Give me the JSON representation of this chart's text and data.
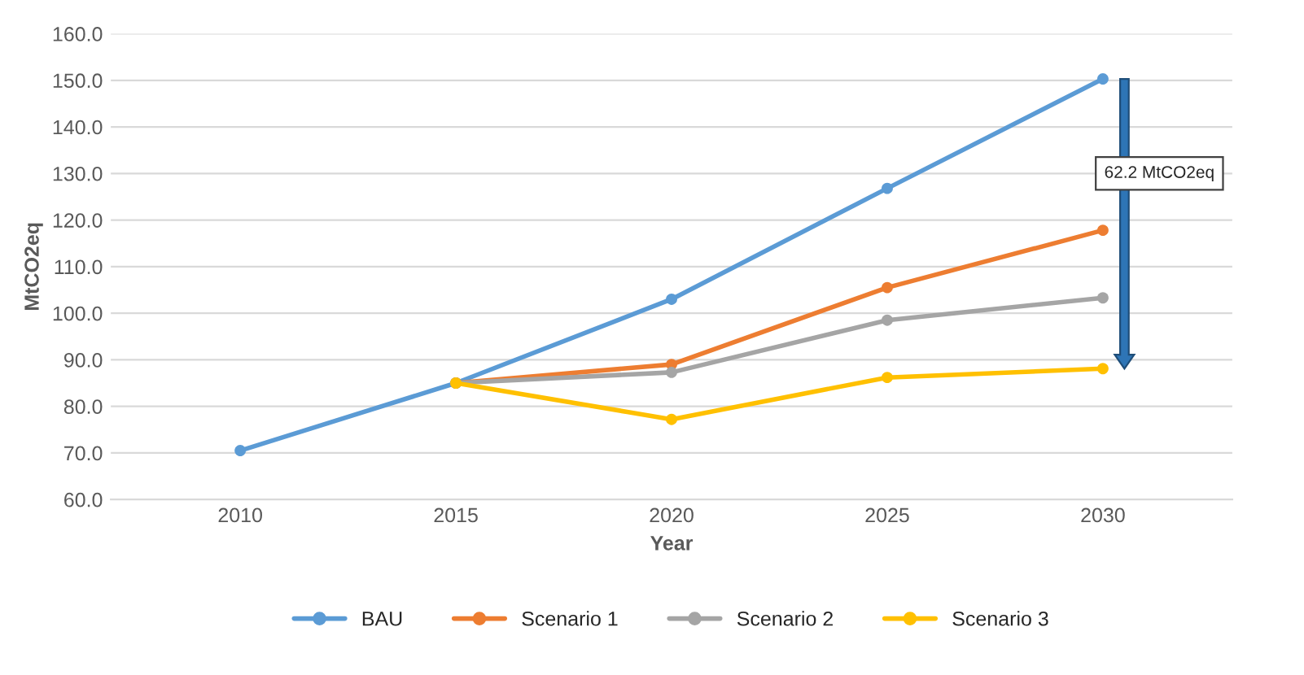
{
  "chart_data": {
    "type": "line",
    "xlabel": "Year",
    "ylabel": "MtCO2eq",
    "categories": [
      "2010",
      "2015",
      "2020",
      "2025",
      "2030"
    ],
    "series": [
      {
        "name": "BAU",
        "color": "#5b9bd5",
        "values": [
          70.5,
          85.0,
          103.0,
          126.8,
          150.3
        ]
      },
      {
        "name": "Scenario 1",
        "color": "#ed7d31",
        "values": [
          null,
          85.0,
          89.0,
          105.5,
          117.8
        ]
      },
      {
        "name": "Scenario 2",
        "color": "#a5a5a5",
        "values": [
          null,
          85.0,
          87.3,
          98.5,
          103.3
        ]
      },
      {
        "name": "Scenario 3",
        "color": "#ffc000",
        "values": [
          null,
          85.0,
          77.2,
          86.2,
          88.1
        ]
      }
    ],
    "annotations": [
      "62.2 MtCO2eq"
    ],
    "ylim": [
      60,
      160
    ],
    "yticks": [
      {
        "value": 60,
        "label": "60.0"
      },
      {
        "value": 70,
        "label": "70.0"
      },
      {
        "value": 80,
        "label": "80.0"
      },
      {
        "value": 90,
        "label": "90.0"
      },
      {
        "value": 100,
        "label": "100.0"
      },
      {
        "value": 110,
        "label": "110.0"
      },
      {
        "value": 120,
        "label": "120.0"
      },
      {
        "value": 130,
        "label": "130.0"
      },
      {
        "value": 140,
        "label": "140.0"
      },
      {
        "value": 150,
        "label": "150.0"
      },
      {
        "value": 160,
        "label": "160.0"
      }
    ],
    "grid": "y",
    "legend": "bottom",
    "marker": "circle",
    "line_style": "solid"
  }
}
